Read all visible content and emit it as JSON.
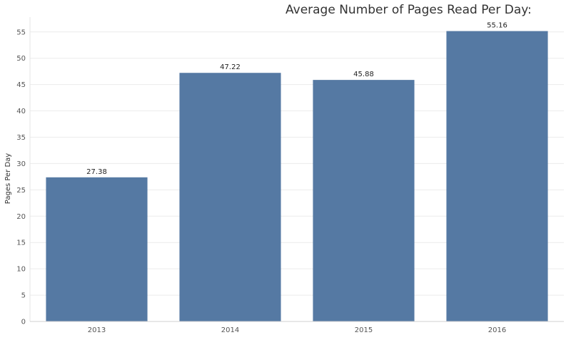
{
  "chart_data": {
    "type": "bar",
    "title": "Average Number of Pages Read Per Day:",
    "xlabel": "",
    "ylabel": "Pages Per Day",
    "categories": [
      "2013",
      "2014",
      "2015",
      "2016"
    ],
    "values": [
      27.38,
      47.22,
      45.88,
      55.16
    ],
    "value_labels": [
      "27.38",
      "47.22",
      "45.88",
      "55.16"
    ],
    "ylim": [
      0,
      57
    ],
    "yticks": [
      0,
      5,
      10,
      15,
      20,
      25,
      30,
      35,
      40,
      45,
      50,
      55
    ],
    "grid": true,
    "legend": "none",
    "bar_color": "#5579a3",
    "grid_color": "#ececec"
  }
}
